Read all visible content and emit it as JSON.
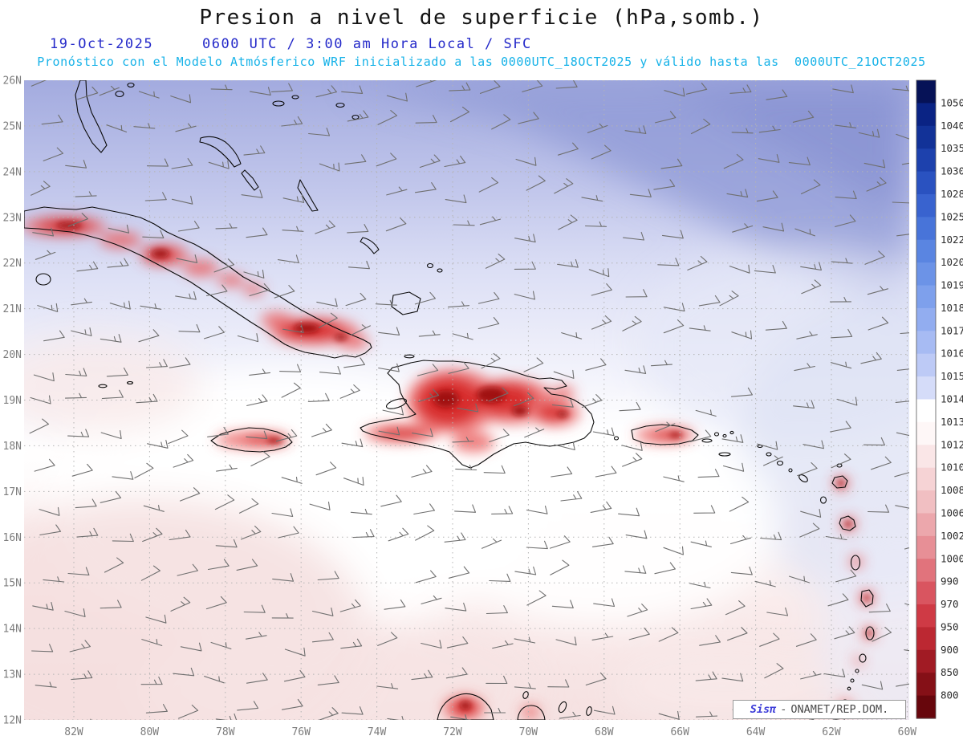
{
  "title": "Presion a nivel de superficie (hPa,somb.)",
  "header": {
    "date": "19-Oct-2025",
    "time_line": "0600 UTC / 3:00 am Hora Local / SFC",
    "forecast_line": "Pronóstico con el Modelo Atmósferico WRF inicializado a las 0000UTC_18OCT2025 y válido hasta las  0000UTC_21OCT2025",
    "date_color": "#2429c9",
    "forecast_color": "#16b2e8"
  },
  "map": {
    "lat_labels": [
      "26N",
      "25N",
      "24N",
      "23N",
      "22N",
      "21N",
      "20N",
      "19N",
      "18N",
      "17N",
      "16N",
      "15N",
      "14N",
      "13N",
      "12N"
    ],
    "lon_labels": [
      "82W",
      "80W",
      "78W",
      "76W",
      "74W",
      "72W",
      "70W",
      "68W",
      "66W",
      "64W",
      "62W",
      "60W"
    ]
  },
  "colorbar": {
    "unit": "hPa",
    "labels": [
      "1050",
      "1040",
      "1035",
      "1030",
      "1028",
      "1025",
      "1022",
      "1020",
      "1019",
      "1018",
      "1017",
      "1016",
      "1015",
      "1014",
      "1013",
      "1012",
      "1010",
      "1008",
      "1006",
      "1002",
      "1000",
      "990",
      "970",
      "950",
      "900",
      "850",
      "800"
    ],
    "colors": [
      "#061257",
      "#0a2384",
      "#123298",
      "#1d41ad",
      "#2a52c0",
      "#3963cf",
      "#4874d9",
      "#5a85e1",
      "#6c93e7",
      "#7ea0ec",
      "#92adf0",
      "#a7bbf3",
      "#bdcaf6",
      "#d5dcf9",
      "#ffffff",
      "#fef7f7",
      "#fae6e7",
      "#f6d3d5",
      "#f1bfc2",
      "#eca7ac",
      "#e78f96",
      "#e1737c",
      "#d95560",
      "#cf3a45",
      "#bc2832",
      "#a11b24",
      "#851017",
      "#67060c"
    ]
  },
  "watermark": {
    "brand": "Sisπ",
    "separator": "-",
    "text": "ONAMET/REP.DOM."
  },
  "palette": {
    "high_pressure_shade": "#98a1da",
    "neutral_shade": "#ffffff",
    "low_pressure_shade": "#f5e1e1",
    "terrain_low_shade": "#d42020",
    "grid_color": "#b4b4b4",
    "barb_color": "#6f6f6f"
  },
  "wind_field": {
    "symbol": "wind-barb",
    "prevailing_direction": "E to ENE",
    "speeds_kt": [
      5,
      10,
      15
    ]
  }
}
